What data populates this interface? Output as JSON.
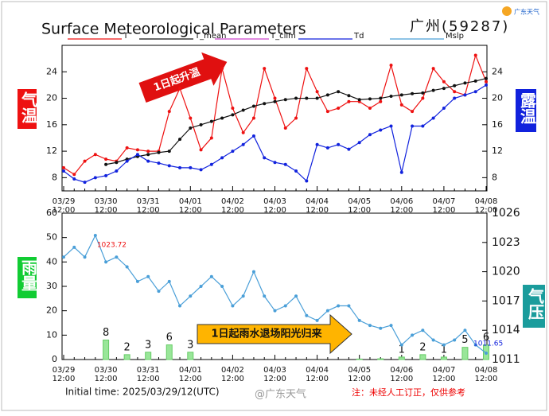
{
  "header": {
    "title": "Surface Meteorological Parameters",
    "station": "广州(59287)",
    "logo": "广东天气"
  },
  "footer": {
    "initial_time": "Initial time: 2025/03/29/12(UTC)",
    "watermark": "@广东天气",
    "note": "注：未经人工订正，仅供参考"
  },
  "chart_data": [
    {
      "type": "line",
      "ylabel": "气温",
      "y2label": "露温",
      "annotation": "1日起升温",
      "categories": [
        "03/29",
        null,
        null,
        null,
        "03/30",
        null,
        null,
        null,
        "03/31",
        null,
        null,
        null,
        "04/01",
        null,
        null,
        null,
        "04/02",
        null,
        null,
        null,
        "04/03",
        null,
        null,
        null,
        "04/04",
        null,
        null,
        null,
        "04/05",
        null,
        null,
        null,
        "04/06",
        null,
        null,
        null,
        "04/07",
        null,
        null,
        null,
        "04/08"
      ],
      "category_times": [
        "12:00",
        null,
        null,
        null,
        "12:00",
        null,
        null,
        null,
        "12:00",
        null,
        null,
        null,
        "12:00",
        null,
        null,
        null,
        "12:00",
        null,
        null,
        null,
        "12:00",
        null,
        null,
        null,
        "12:00",
        null,
        null,
        null,
        "12:00",
        null,
        null,
        null,
        "12:00",
        null,
        null,
        null,
        "12:00",
        null,
        null,
        null,
        "12:00"
      ],
      "ylim": [
        6,
        28
      ],
      "yticks": [
        8,
        12,
        16,
        20,
        24
      ],
      "y2lim": [
        6,
        28
      ],
      "y2ticks": [
        8,
        12,
        16,
        20,
        24
      ],
      "series": [
        {
          "name": "T",
          "color": "#ee1111",
          "values": [
            9.5,
            8.5,
            10.5,
            11.5,
            10.8,
            10.5,
            12.5,
            12.2,
            12,
            12,
            18,
            21.5,
            17,
            12.2,
            14,
            24.5,
            18.5,
            14.8,
            17,
            24.5,
            20,
            15.5,
            17,
            24.5,
            21,
            18,
            18.5,
            19.5,
            19.5,
            18.5,
            19.5,
            25,
            19,
            18,
            20,
            24.5,
            22.5,
            21,
            20.5,
            26.5,
            22.5
          ]
        },
        {
          "name": "T_mean",
          "color": "#111111",
          "values": [
            null,
            null,
            null,
            null,
            10,
            10.3,
            10.8,
            11.2,
            11.5,
            11.8,
            12,
            13.8,
            15.5,
            16,
            16.5,
            17,
            17.5,
            18.2,
            18.8,
            19.2,
            19.5,
            19.8,
            20,
            20,
            20,
            20.5,
            21,
            20.4,
            19.8,
            19.9,
            20,
            20.3,
            20.5,
            20.7,
            20.8,
            21.2,
            21.5,
            21.9,
            22.3,
            22.6,
            23
          ]
        },
        {
          "name": "T_clim",
          "color": "#cc44cc",
          "values": [
            null,
            null,
            null,
            null,
            null,
            null,
            null,
            null,
            null,
            null,
            null,
            null,
            null,
            null,
            null,
            null,
            null,
            null,
            null,
            null,
            null,
            null,
            null,
            null,
            null,
            null,
            null,
            null,
            null,
            null,
            null,
            null,
            null,
            null,
            null,
            null,
            null,
            null,
            null,
            null,
            null
          ]
        },
        {
          "name": "Td",
          "color": "#1122dd",
          "axis": "y2",
          "values": [
            9,
            7.8,
            7.3,
            8,
            8.3,
            9,
            10.5,
            11.5,
            10.5,
            10.2,
            9.8,
            9.5,
            9.5,
            9.2,
            10,
            11,
            12,
            13,
            14.3,
            11,
            10.3,
            10,
            9,
            7.5,
            13,
            12.5,
            13,
            12.3,
            13.3,
            14.5,
            15.2,
            15.8,
            8.8,
            15.8,
            15.8,
            17,
            18.5,
            20,
            20.5,
            21,
            22
          ]
        }
      ]
    },
    {
      "type": "combo",
      "ylabel": "雨量",
      "y2label": "气压",
      "annotation": "1日起雨水退场阳光归来",
      "categories": [
        "03/29",
        null,
        null,
        null,
        "03/30",
        null,
        null,
        null,
        "03/31",
        null,
        null,
        null,
        "04/01",
        null,
        null,
        null,
        "04/02",
        null,
        null,
        null,
        "04/03",
        null,
        null,
        null,
        "04/04",
        null,
        null,
        null,
        "04/05",
        null,
        null,
        null,
        "04/06",
        null,
        null,
        null,
        "04/07",
        null,
        null,
        null,
        "04/08"
      ],
      "category_times": [
        "12:00",
        null,
        null,
        null,
        "12:00",
        null,
        null,
        null,
        "12:00",
        null,
        null,
        null,
        "12:00",
        null,
        null,
        null,
        "12:00",
        null,
        null,
        null,
        "12:00",
        null,
        null,
        null,
        "12:00",
        null,
        null,
        null,
        "12:00",
        null,
        null,
        null,
        "12:00",
        null,
        null,
        null,
        "12:00",
        null,
        null,
        null,
        "12:00"
      ],
      "ylim": [
        0,
        60
      ],
      "yticks": [
        0,
        10,
        20,
        30,
        40,
        50,
        60
      ],
      "y2lim": [
        1011,
        1026
      ],
      "y2ticks": [
        1011,
        1014,
        1017,
        1020,
        1023,
        1026
      ],
      "series": [
        {
          "kind": "bar",
          "color": "#99e699",
          "values": [
            0,
            0,
            0,
            0,
            8,
            0,
            2,
            0,
            3,
            0,
            6,
            0,
            3,
            0,
            0,
            0,
            0,
            0,
            0,
            0,
            0,
            0,
            0,
            0,
            0,
            0,
            0,
            0,
            0.2,
            0,
            0.3,
            0,
            1,
            0,
            2,
            0,
            1,
            0,
            5,
            0,
            6
          ]
        },
        {
          "name": "Mslp",
          "kind": "line",
          "axis": "y2",
          "color": "#4a9fd8",
          "labeled_points": [
            3,
            40
          ],
          "values": [
            1021.5,
            1022.5,
            1021.5,
            1023.72,
            1021,
            1021.5,
            1020.5,
            1019,
            1019.5,
            1018,
            1019,
            1016.5,
            1017.5,
            1018.5,
            1019.5,
            1018.5,
            1016.5,
            1017.5,
            1020,
            1017.5,
            1016,
            1016.5,
            1017.5,
            1015.5,
            1015,
            1016,
            1016.5,
            1016.5,
            1015,
            1014.5,
            1014.2,
            1014.5,
            1012.5,
            1013.5,
            1014,
            1013,
            1012.5,
            1013,
            1014,
            1012.5,
            1011.65
          ]
        }
      ]
    }
  ]
}
